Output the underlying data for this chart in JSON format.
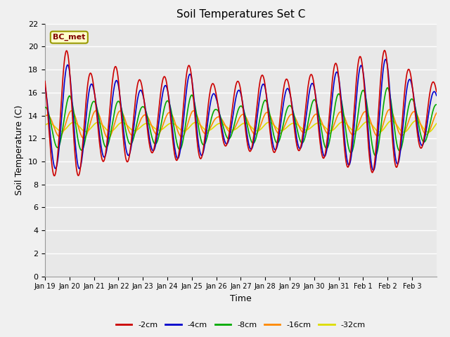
{
  "title": "Soil Temperatures Set C",
  "xlabel": "Time",
  "ylabel": "Soil Temperature (C)",
  "annotation": "BC_met",
  "ylim": [
    0,
    22
  ],
  "yticks": [
    0,
    2,
    4,
    6,
    8,
    10,
    12,
    14,
    16,
    18,
    20,
    22
  ],
  "x_labels": [
    "Jan 19",
    "Jan 20",
    "Jan 21",
    "Jan 22",
    "Jan 23",
    "Jan 24",
    "Jan 25",
    "Jan 26",
    "Jan 27",
    "Jan 28",
    "Jan 29",
    "Jan 30",
    "Jan 31",
    "Feb 1",
    "Feb 2",
    "Feb 3"
  ],
  "colors": {
    "-2cm": "#cc0000",
    "-4cm": "#0000cc",
    "-8cm": "#00aa00",
    "-16cm": "#ff8800",
    "-32cm": "#dddd00"
  },
  "series_labels": [
    "-2cm",
    "-4cm",
    "-8cm",
    "-16cm",
    "-32cm"
  ],
  "fig_facecolor": "#f0f0f0",
  "plot_bg_color": "#e8e8e8",
  "grid_color": "#ffffff",
  "n_days": 16
}
